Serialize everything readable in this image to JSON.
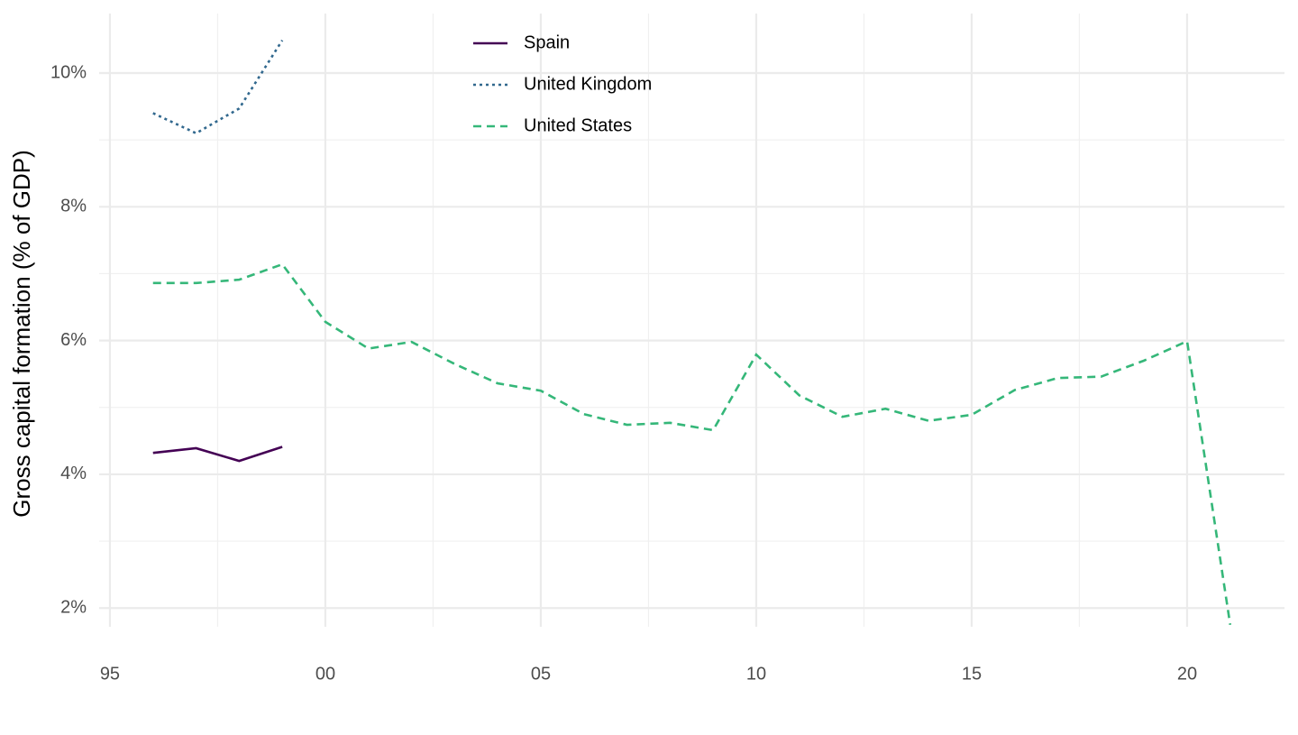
{
  "chart_data": {
    "type": "line",
    "y_label": "Gross capital formation (% of GDP)",
    "x": [
      1996,
      1997,
      1998,
      1999,
      2000,
      2001,
      2002,
      2003,
      2004,
      2005,
      2006,
      2007,
      2008,
      2009,
      2010,
      2011,
      2012,
      2013,
      2014,
      2015,
      2016,
      2017,
      2018,
      2019,
      2020,
      2021
    ],
    "series": [
      {
        "name": "Spain",
        "color": "#440154",
        "dash": "solid",
        "values": [
          4.32,
          4.39,
          4.2,
          4.41,
          null,
          null,
          null,
          null,
          null,
          null,
          null,
          null,
          null,
          null,
          null,
          null,
          null,
          null,
          null,
          null,
          null,
          null,
          null,
          null,
          null,
          null
        ]
      },
      {
        "name": "United Kingdom",
        "color": "#31688e",
        "dash": "dotted",
        "values": [
          9.4,
          9.1,
          9.47,
          10.49,
          null,
          null,
          null,
          null,
          null,
          null,
          null,
          null,
          null,
          null,
          null,
          null,
          null,
          null,
          null,
          null,
          null,
          null,
          null,
          null,
          null,
          null
        ]
      },
      {
        "name": "United States",
        "color": "#35b779",
        "dash": "dashed",
        "values": [
          6.86,
          6.86,
          6.91,
          7.14,
          6.28,
          5.88,
          5.98,
          5.65,
          5.36,
          5.25,
          4.9,
          4.74,
          4.77,
          4.66,
          5.79,
          5.18,
          4.86,
          4.98,
          4.8,
          4.89,
          5.26,
          5.44,
          5.46,
          5.7,
          5.99,
          1.75
        ]
      }
    ],
    "xlim": [
      1994.75,
      2022.26
    ],
    "xticks": [
      {
        "value": 1995,
        "label": "95"
      },
      {
        "value": 2000,
        "label": "00"
      },
      {
        "value": 2005,
        "label": "05"
      },
      {
        "value": 2010,
        "label": "10"
      },
      {
        "value": 2015,
        "label": "15"
      },
      {
        "value": 2020,
        "label": "20"
      }
    ],
    "ylim": [
      1.72,
      10.89
    ],
    "yticks": [
      {
        "value": 2,
        "label": "2%"
      },
      {
        "value": 4,
        "label": "4%"
      },
      {
        "value": 6,
        "label": "6%"
      },
      {
        "value": 8,
        "label": "8%"
      },
      {
        "value": 10,
        "label": "10%"
      }
    ],
    "grid": true,
    "legend": "top"
  }
}
